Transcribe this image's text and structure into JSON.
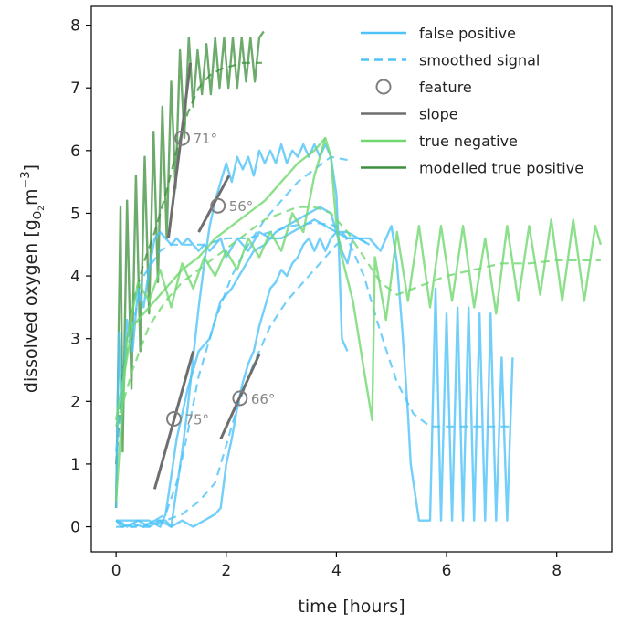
{
  "chart_data": {
    "type": "line",
    "xlabel": "time [hours]",
    "ylabel": "dissolved oxygen [g",
    "ylabel_sub": "O",
    "ylabel_sub2": "2",
    "ylabel_tail": "m",
    "ylabel_sup": "−3",
    "ylabel_close": "]",
    "xlim": [
      -0.45,
      9.0
    ],
    "ylim": [
      -0.4,
      8.3
    ],
    "xticks": [
      0,
      2,
      4,
      6,
      8
    ],
    "yticks": [
      0,
      1,
      2,
      3,
      4,
      5,
      6,
      7,
      8
    ],
    "grid": false,
    "legend_position": "top-right",
    "colors": {
      "false_positive": "#4fc3f7",
      "smoothed": "#4fc3f7",
      "feature": "#7f7f7f",
      "slope": "#6e6e6e",
      "true_negative": "#6fd86f",
      "modelled_true_positive": "#3c8f3c"
    },
    "legend": [
      {
        "label": "false positive",
        "style": "solid",
        "color": "#4fc3f7"
      },
      {
        "label": "smoothed signal",
        "style": "dashed",
        "color": "#4fc3f7"
      },
      {
        "label": "feature",
        "style": "circle",
        "color": "#7f7f7f"
      },
      {
        "label": "slope",
        "style": "solid",
        "color": "#6e6e6e"
      },
      {
        "label": "true negative",
        "style": "solid",
        "color": "#6fd86f"
      },
      {
        "label": "modelled true positive",
        "style": "solid",
        "color": "#3c8f3c"
      }
    ],
    "series": [
      {
        "name": "modelled true positive",
        "color": "#3c8f3c",
        "style": "solid",
        "x": [
          0.0,
          0.08,
          0.12,
          0.2,
          0.28,
          0.36,
          0.44,
          0.52,
          0.6,
          0.68,
          0.76,
          0.84,
          0.92,
          1.0,
          1.08,
          1.16,
          1.24,
          1.32,
          1.4,
          1.48,
          1.56,
          1.64,
          1.72,
          1.8,
          1.88,
          1.96,
          2.04,
          2.12,
          2.2,
          2.28,
          2.36,
          2.44,
          2.52,
          2.6,
          2.68
        ],
        "y": [
          0.3,
          5.1,
          1.2,
          5.2,
          2.2,
          5.6,
          2.8,
          5.9,
          3.4,
          6.3,
          3.9,
          6.7,
          4.6,
          7.1,
          5.4,
          7.6,
          6.2,
          7.8,
          6.7,
          7.6,
          6.9,
          7.7,
          6.9,
          7.8,
          7.0,
          7.8,
          7.0,
          7.8,
          7.0,
          7.8,
          7.1,
          7.8,
          7.1,
          7.8,
          7.9
        ]
      },
      {
        "name": "modelled true positive smoothed",
        "color": "#3c8f3c",
        "style": "dashed",
        "x": [
          0.0,
          0.1,
          0.2,
          0.35,
          0.5,
          0.7,
          0.9,
          1.1,
          1.3,
          1.5,
          1.7,
          1.9,
          2.1,
          2.3,
          2.5,
          2.65
        ],
        "y": [
          1.0,
          2.2,
          3.0,
          3.7,
          4.2,
          4.7,
          5.3,
          6.0,
          6.6,
          7.0,
          7.2,
          7.3,
          7.35,
          7.4,
          7.4,
          7.4
        ]
      },
      {
        "name": "false positive",
        "color": "#4fc3f7",
        "style": "solid",
        "x": [
          0.0,
          0.1,
          0.3,
          0.5,
          0.7,
          0.9,
          1.0,
          1.1,
          1.2,
          1.3,
          1.4,
          1.5,
          1.6,
          1.7,
          1.8,
          1.9,
          2.0,
          2.1,
          2.2,
          2.3,
          2.4,
          2.5,
          2.6,
          2.7,
          2.8,
          2.9,
          3.0,
          3.1,
          3.2,
          3.3,
          3.4,
          3.5,
          3.6,
          3.7,
          3.8,
          3.9,
          4.0,
          4.05,
          4.1,
          4.2
        ],
        "y": [
          0.1,
          0.0,
          0.05,
          0.0,
          0.1,
          0.1,
          0.0,
          0.6,
          1.2,
          1.9,
          2.7,
          3.5,
          4.2,
          4.8,
          5.2,
          5.5,
          5.8,
          5.5,
          5.9,
          5.7,
          5.9,
          5.6,
          6.0,
          5.8,
          6.0,
          5.8,
          6.1,
          5.8,
          6.0,
          5.9,
          6.1,
          5.9,
          6.1,
          5.9,
          6.1,
          5.9,
          5.3,
          4.3,
          3.0,
          2.8
        ]
      },
      {
        "name": "false positive 2",
        "color": "#4fc3f7",
        "style": "solid",
        "x": [
          0.0,
          0.05,
          0.1,
          0.2,
          0.3,
          0.4,
          0.5,
          0.6,
          0.7,
          0.8,
          0.9,
          1.0,
          1.1,
          1.2,
          1.3,
          1.4,
          1.5,
          1.6,
          1.7,
          1.8,
          1.9,
          2.0,
          2.2,
          2.4,
          2.6,
          2.8,
          3.0,
          3.2,
          3.4,
          3.6,
          3.8,
          4.0,
          4.2,
          4.4,
          4.6,
          4.8,
          5.0,
          5.1,
          5.2,
          5.3,
          5.35,
          5.5,
          5.7,
          5.8,
          5.9,
          6.0,
          6.1,
          6.2,
          6.3,
          6.4,
          6.5,
          6.6,
          6.7,
          6.8,
          6.9,
          7.0,
          7.1,
          7.2
        ],
        "y": [
          0.3,
          3.1,
          1.8,
          3.3,
          2.8,
          3.8,
          3.5,
          4.1,
          4.6,
          4.7,
          4.6,
          4.5,
          4.6,
          4.5,
          4.6,
          4.5,
          4.4,
          4.5,
          4.4,
          4.5,
          4.6,
          4.3,
          4.6,
          4.4,
          4.7,
          4.6,
          4.6,
          4.7,
          4.8,
          4.9,
          4.8,
          4.7,
          4.7,
          4.6,
          4.6,
          4.4,
          4.8,
          4.2,
          3.1,
          1.8,
          1.0,
          0.1,
          0.1,
          3.8,
          0.1,
          3.4,
          0.1,
          3.5,
          0.1,
          3.5,
          0.1,
          3.4,
          0.1,
          3.4,
          0.1,
          2.7,
          0.1,
          2.7
        ]
      },
      {
        "name": "false positive 3",
        "color": "#4fc3f7",
        "style": "solid",
        "x": [
          0.0,
          0.2,
          0.4,
          0.6,
          0.8,
          0.9,
          1.0,
          1.1,
          1.3,
          1.5,
          1.7,
          1.9,
          2.1,
          2.3,
          2.5,
          2.7,
          2.9,
          3.1,
          3.3,
          3.5,
          3.7,
          3.9,
          4.0,
          4.2,
          4.4,
          4.6
        ],
        "y": [
          0.1,
          0.1,
          0.1,
          0.1,
          0.0,
          0.2,
          0.8,
          1.4,
          2.2,
          2.8,
          3.0,
          3.6,
          3.8,
          4.1,
          4.4,
          4.5,
          4.7,
          4.8,
          4.9,
          5.0,
          5.1,
          5.0,
          4.7,
          4.6,
          4.6,
          4.5
        ]
      },
      {
        "name": "false positive 4",
        "color": "#4fc3f7",
        "style": "solid",
        "x": [
          0.0,
          0.2,
          0.4,
          0.6,
          0.8,
          1.0,
          1.2,
          1.4,
          1.6,
          1.8,
          1.9,
          2.0,
          2.1,
          2.2,
          2.3,
          2.4,
          2.5,
          2.6,
          2.7,
          2.8,
          2.9,
          3.0,
          3.1,
          3.2,
          3.3,
          3.4,
          3.5,
          3.6,
          3.7,
          3.8,
          3.9,
          4.0,
          4.1,
          4.2,
          4.3
        ],
        "y": [
          0.1,
          0.0,
          0.1,
          0.0,
          0.1,
          0.0,
          0.1,
          0.0,
          0.1,
          0.2,
          0.3,
          1.0,
          1.4,
          1.9,
          2.3,
          2.6,
          2.8,
          3.2,
          3.5,
          3.8,
          3.9,
          4.1,
          4.0,
          4.2,
          4.3,
          4.5,
          4.6,
          4.4,
          4.6,
          4.4,
          4.6,
          4.7,
          4.4,
          4.2,
          4.6
        ]
      },
      {
        "name": "smoothed signal",
        "color": "#4fc3f7",
        "style": "dashed",
        "x": [
          0.0,
          0.3,
          0.6,
          0.9,
          1.1,
          1.3,
          1.5,
          1.8,
          2.1,
          2.4,
          2.7,
          3.0,
          3.3,
          3.6,
          3.9,
          4.2
        ],
        "y": [
          0.0,
          0.0,
          0.05,
          0.2,
          0.7,
          1.5,
          2.4,
          3.3,
          4.0,
          4.5,
          4.9,
          5.2,
          5.5,
          5.7,
          5.9,
          5.85
        ]
      },
      {
        "name": "smoothed signal 2",
        "color": "#4fc3f7",
        "style": "dashed",
        "x": [
          0.0,
          0.2,
          0.5,
          0.8,
          1.0,
          1.3,
          1.6,
          2.0,
          2.4,
          2.8,
          3.2,
          3.6,
          4.0,
          4.2,
          4.5,
          4.8,
          5.1,
          5.4,
          5.7,
          6.0,
          6.5,
          7.0,
          7.2
        ],
        "y": [
          1.2,
          2.8,
          4.0,
          4.4,
          4.5,
          4.5,
          4.5,
          4.6,
          4.6,
          4.7,
          4.8,
          4.85,
          4.8,
          4.6,
          4.0,
          3.1,
          2.3,
          1.8,
          1.6,
          1.6,
          1.6,
          1.6,
          1.6
        ]
      },
      {
        "name": "smoothed signal 3",
        "color": "#4fc3f7",
        "style": "dashed",
        "x": [
          0.0,
          0.3,
          0.6,
          0.9,
          1.2,
          1.5,
          1.8,
          2.0,
          2.2,
          2.5,
          2.8,
          3.1,
          3.4,
          3.7,
          4.0,
          4.2,
          4.4,
          4.6
        ],
        "y": [
          0.1,
          0.0,
          0.0,
          0.1,
          0.2,
          0.4,
          0.7,
          1.3,
          1.9,
          2.6,
          3.2,
          3.6,
          3.9,
          4.2,
          4.5,
          4.6,
          4.6,
          4.5
        ]
      },
      {
        "name": "true negative",
        "color": "#6fd86f",
        "style": "solid",
        "x": [
          0.0,
          0.2,
          0.4,
          0.6,
          0.8,
          1.0,
          1.2,
          1.4,
          1.6,
          1.8,
          2.0,
          2.2,
          2.4,
          2.6,
          2.8,
          3.0,
          3.2,
          3.4,
          3.6,
          3.8,
          3.9,
          4.0,
          4.1,
          4.3,
          4.5,
          4.65,
          4.7,
          4.9,
          5.1,
          5.3,
          5.5,
          5.7,
          5.9,
          6.1,
          6.3,
          6.5,
          6.7,
          6.9,
          7.1,
          7.3,
          7.5,
          7.7,
          7.9,
          8.1,
          8.3,
          8.5,
          8.7,
          8.8
        ],
        "y": [
          0.4,
          3.0,
          3.9,
          3.6,
          4.1,
          3.5,
          4.2,
          3.8,
          4.3,
          4.0,
          4.4,
          4.1,
          4.6,
          4.3,
          4.7,
          4.4,
          5.0,
          4.7,
          5.6,
          6.2,
          5.9,
          4.8,
          4.3,
          3.6,
          2.5,
          1.7,
          4.3,
          3.3,
          4.7,
          3.6,
          4.8,
          3.5,
          4.8,
          3.6,
          4.8,
          3.5,
          4.6,
          3.4,
          4.8,
          3.6,
          4.8,
          3.7,
          4.9,
          3.6,
          4.9,
          3.6,
          4.8,
          4.5
        ]
      },
      {
        "name": "true negative 2",
        "color": "#6fd86f",
        "style": "solid",
        "x": [
          0.0,
          0.3,
          0.6,
          0.9,
          1.2,
          1.5,
          1.8,
          2.1,
          2.4,
          2.7,
          3.0,
          3.3,
          3.6,
          3.8
        ],
        "y": [
          1.7,
          3.2,
          3.5,
          3.8,
          4.1,
          4.3,
          4.6,
          4.8,
          5.0,
          5.2,
          5.5,
          5.8,
          6.0,
          6.2
        ]
      },
      {
        "name": "true negative smoothed",
        "color": "#6fd86f",
        "style": "dashed",
        "x": [
          0.0,
          0.3,
          0.6,
          0.9,
          1.2,
          1.5,
          1.8,
          2.1,
          2.4,
          2.7,
          3.0,
          3.3,
          3.6,
          3.9,
          4.2,
          4.5,
          4.8,
          5.1,
          5.4,
          5.7,
          6.0,
          6.5,
          7.0,
          7.5,
          8.0,
          8.5,
          8.8
        ],
        "y": [
          1.6,
          2.5,
          3.2,
          3.6,
          3.9,
          4.1,
          4.3,
          4.5,
          4.7,
          4.9,
          5.0,
          5.1,
          5.1,
          5.0,
          4.7,
          4.3,
          3.9,
          3.7,
          3.8,
          3.9,
          4.0,
          4.1,
          4.2,
          4.2,
          4.25,
          4.25,
          4.25
        ]
      }
    ],
    "slopes": [
      {
        "x": [
          0.95,
          1.35
        ],
        "y": [
          4.6,
          7.4
        ]
      },
      {
        "x": [
          1.5,
          2.05
        ],
        "y": [
          4.7,
          5.6
        ]
      },
      {
        "x": [
          0.7,
          1.4
        ],
        "y": [
          0.6,
          2.8
        ]
      },
      {
        "x": [
          1.9,
          2.6
        ],
        "y": [
          1.4,
          2.75
        ]
      }
    ],
    "features": [
      {
        "x": 1.2,
        "y": 6.2,
        "label": "71°"
      },
      {
        "x": 1.85,
        "y": 5.12,
        "label": "56°"
      },
      {
        "x": 1.05,
        "y": 1.72,
        "label": "75°"
      },
      {
        "x": 2.25,
        "y": 2.05,
        "label": "66°"
      }
    ]
  }
}
